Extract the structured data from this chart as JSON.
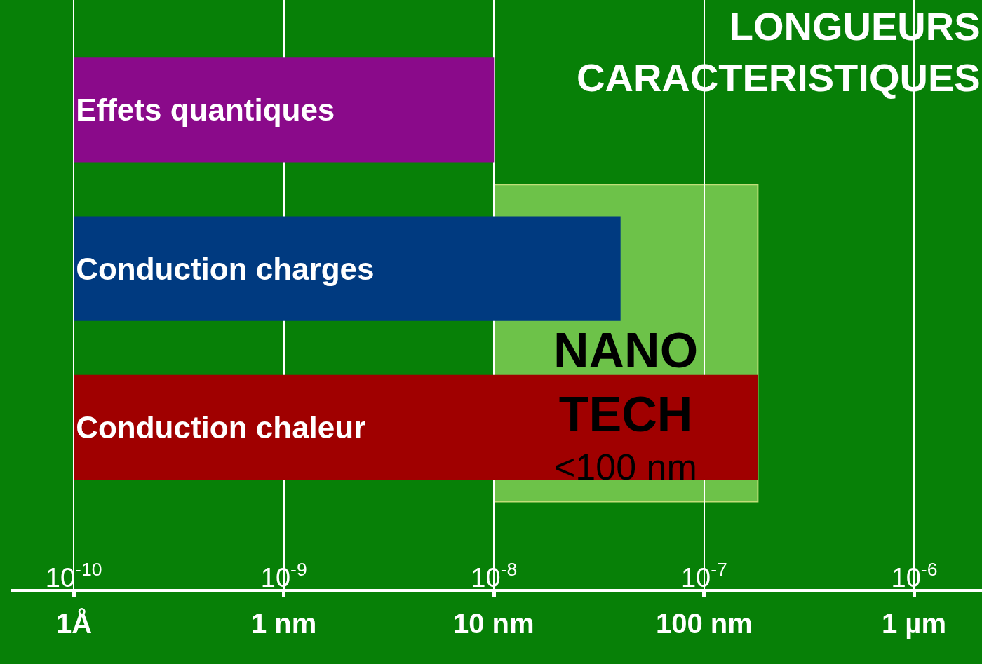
{
  "chart_data": {
    "type": "bar",
    "orientation": "horizontal",
    "title": "LONGUEURS CARACTERISTIQUES",
    "categories": [
      "Effets quantiques",
      "Conduction charges",
      "Conduction chaleur"
    ],
    "base": [
      1e-10,
      1e-10,
      1e-10
    ],
    "values": [
      9.9e-09,
      3.99e-08,
      1.799e-07
    ],
    "colors": [
      "#8a0a8a",
      "#003a80",
      "#a00000"
    ],
    "log": "x",
    "xlim": [
      5e-11,
      2.1e-06
    ],
    "xticks": [
      {
        "value": 1e-10,
        "label": "10$^{-10}$"
      },
      {
        "value": 1e-09,
        "label": "10$^{-9}$"
      },
      {
        "value": 1e-08,
        "label": "10$^{-8}$"
      },
      {
        "value": 1e-07,
        "label": "10$^{-7}$"
      },
      {
        "value": 1e-06,
        "label": "10$^{-6}$"
      }
    ],
    "bands": [
      {
        "axis": "x",
        "from": 1e-08,
        "to": 1.8e-07,
        "label": "NANO TECH",
        "color": "#8fd860"
      }
    ],
    "annotations": [
      "<100 nm",
      "1Å",
      "1 nm",
      "10 nm",
      "100 nm",
      "1 µm"
    ],
    "grid": "x"
  }
}
